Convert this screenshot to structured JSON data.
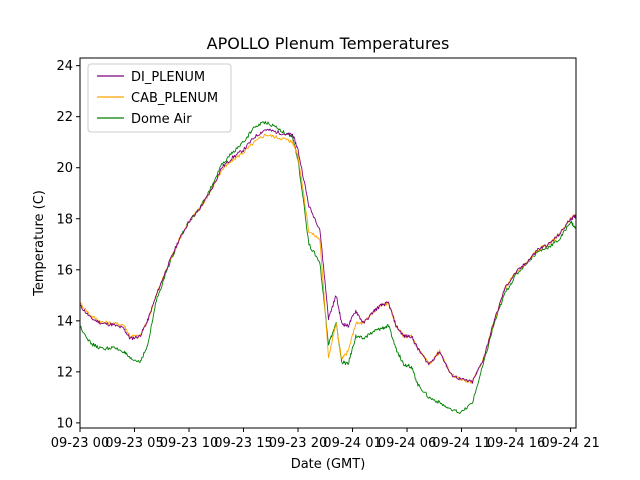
{
  "chart_data": {
    "type": "line",
    "title": "APOLLO Plenum Temperatures",
    "xlabel": "Date (GMT)",
    "ylabel": "Temperature (C)",
    "xlim": [
      0,
      45.5
    ],
    "ylim": [
      9.8,
      24.3
    ],
    "yticks": [
      10,
      12,
      14,
      16,
      18,
      20,
      22,
      24
    ],
    "ytick_labels": [
      "10",
      "12",
      "14",
      "16",
      "18",
      "20",
      "22",
      "24"
    ],
    "xticks": [
      0,
      5,
      10,
      15,
      20,
      25,
      30,
      35,
      40,
      45
    ],
    "xtick_labels": [
      "09-23 00",
      "09-23 05",
      "09-23 10",
      "09-23 15",
      "09-23 20",
      "09-24 01",
      "09-24 06",
      "09-24 11",
      "09-24 16",
      "09-24 21"
    ],
    "legend_position": "top-left",
    "x": [
      0,
      1,
      2,
      3,
      4,
      4.6,
      5.5,
      6.2,
      7,
      8,
      9,
      10,
      11,
      12,
      13,
      14,
      15,
      16,
      17,
      18,
      19,
      19.5,
      20,
      21,
      22,
      22.8,
      23.5,
      24,
      24.6,
      25.3,
      26,
      27,
      27.6,
      28.3,
      29,
      29.7,
      30.4,
      31,
      32,
      33,
      34,
      35,
      36,
      37,
      38,
      39,
      40,
      41,
      42,
      43,
      44,
      45,
      45.5
    ],
    "series": [
      {
        "name": "DI_PLENUM",
        "color": "#800080",
        "values": [
          14.6,
          14.1,
          13.9,
          13.85,
          13.7,
          13.3,
          13.4,
          14.0,
          15.0,
          16.1,
          17.1,
          17.9,
          18.4,
          19.1,
          20.0,
          20.4,
          20.7,
          21.2,
          21.5,
          21.4,
          21.3,
          21.3,
          20.7,
          18.5,
          17.6,
          14.1,
          15.0,
          13.9,
          13.8,
          14.4,
          13.9,
          14.4,
          14.6,
          14.7,
          13.8,
          13.4,
          13.4,
          12.9,
          12.3,
          12.8,
          11.9,
          11.7,
          11.6,
          12.5,
          14.0,
          15.3,
          15.9,
          16.3,
          16.8,
          17.0,
          17.4,
          18.0,
          18.1
        ]
      },
      {
        "name": "CAB_PLENUM",
        "color": "#ffa500",
        "values": [
          14.7,
          14.2,
          13.95,
          13.9,
          13.85,
          13.4,
          13.4,
          14.0,
          15.0,
          16.1,
          17.1,
          17.9,
          18.4,
          19.1,
          19.9,
          20.3,
          20.6,
          21.0,
          21.3,
          21.2,
          21.1,
          21.0,
          20.5,
          17.5,
          17.2,
          12.6,
          13.9,
          12.5,
          12.8,
          13.9,
          13.9,
          14.4,
          14.6,
          14.7,
          13.8,
          13.4,
          13.4,
          12.9,
          12.3,
          12.8,
          11.9,
          11.7,
          11.6,
          12.5,
          14.0,
          15.3,
          15.9,
          16.3,
          16.8,
          17.0,
          17.4,
          18.0,
          18.2
        ]
      },
      {
        "name": "Dome Air",
        "color": "#008000",
        "values": [
          13.8,
          13.1,
          12.9,
          12.95,
          12.8,
          12.5,
          12.4,
          13.0,
          14.8,
          16.0,
          17.1,
          17.9,
          18.4,
          19.2,
          20.1,
          20.6,
          21.0,
          21.6,
          21.8,
          21.6,
          21.3,
          21.2,
          20.3,
          17.0,
          16.3,
          13.1,
          13.9,
          12.4,
          12.3,
          13.4,
          13.3,
          13.6,
          13.7,
          13.8,
          12.9,
          12.3,
          12.2,
          11.5,
          11.0,
          10.8,
          10.5,
          10.4,
          10.8,
          12.3,
          13.9,
          15.1,
          15.8,
          16.3,
          16.7,
          16.9,
          17.2,
          17.9,
          17.6
        ]
      }
    ]
  }
}
